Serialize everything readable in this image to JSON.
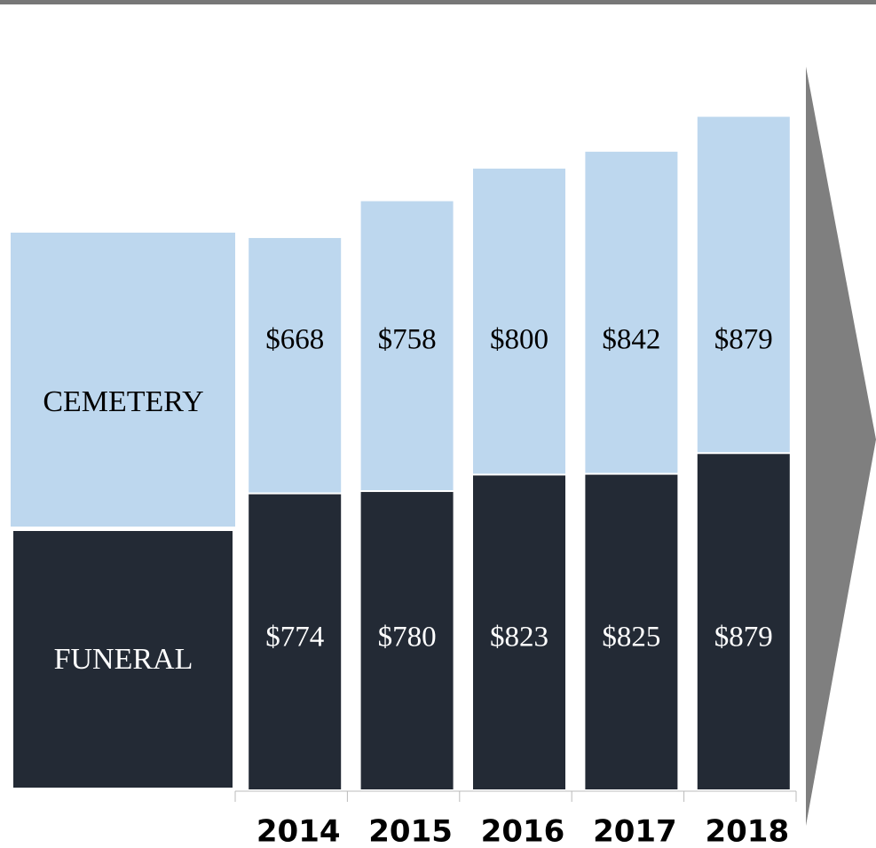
{
  "chart_data": {
    "type": "stacked_bar",
    "categories": [
      "2014",
      "2015",
      "2016",
      "2017",
      "2018"
    ],
    "series": [
      {
        "name": "FUNERAL",
        "color": "#232a35",
        "values": [
          774,
          780,
          823,
          825,
          879
        ],
        "value_labels": [
          "$774",
          "$780",
          "$823",
          "$825",
          "$879"
        ]
      },
      {
        "name": "CEMETERY",
        "color": "#bdd7ee",
        "values": [
          668,
          758,
          800,
          842,
          879
        ],
        "value_labels": [
          "$668",
          "$758",
          "$800",
          "$842",
          "$879"
        ]
      }
    ],
    "ylim": [
      0,
      2000
    ],
    "legend": "left"
  }
}
